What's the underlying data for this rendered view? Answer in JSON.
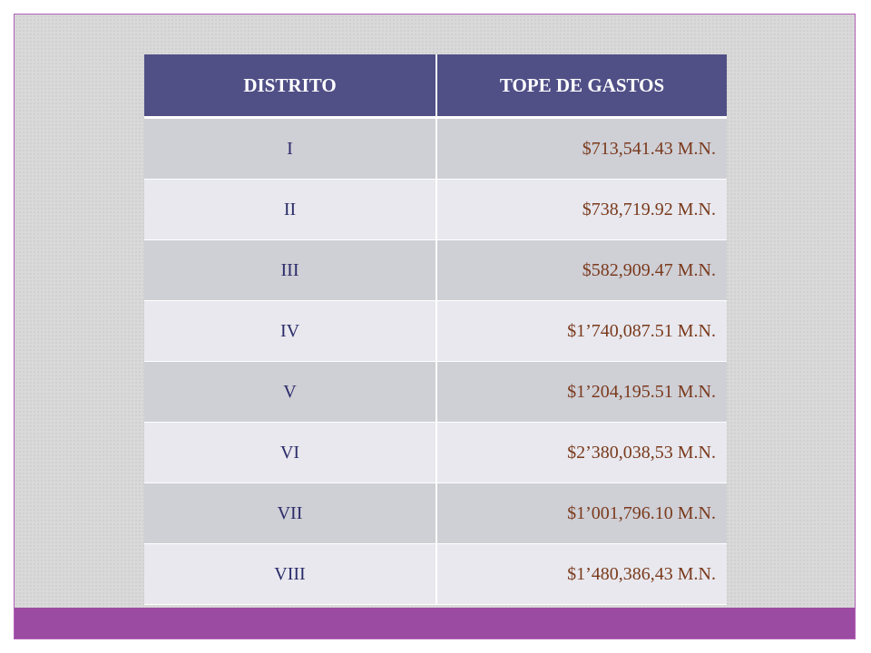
{
  "table": {
    "headers": [
      "DISTRITO",
      "TOPE DE GASTOS"
    ],
    "rows": [
      {
        "district": "I",
        "amount": "$713,541.43 M.N."
      },
      {
        "district": "II",
        "amount": "$738,719.92 M.N."
      },
      {
        "district": "III",
        "amount": "$582,909.47 M.N."
      },
      {
        "district": "IV",
        "amount": "$1’740,087.51 M.N."
      },
      {
        "district": "V",
        "amount": "$1’204,195.51 M.N."
      },
      {
        "district": "VI",
        "amount": "$2’380,038,53 M.N."
      },
      {
        "district": "VII",
        "amount": "$1’001,796.10 M.N."
      },
      {
        "district": "VIII",
        "amount": "$1’480,386,43 M.N."
      }
    ]
  },
  "colors": {
    "header_bg": "#504f86",
    "row_odd": "#cfcfd6",
    "row_even": "#e8e8ee",
    "accent_band": "#9c4ba2"
  }
}
